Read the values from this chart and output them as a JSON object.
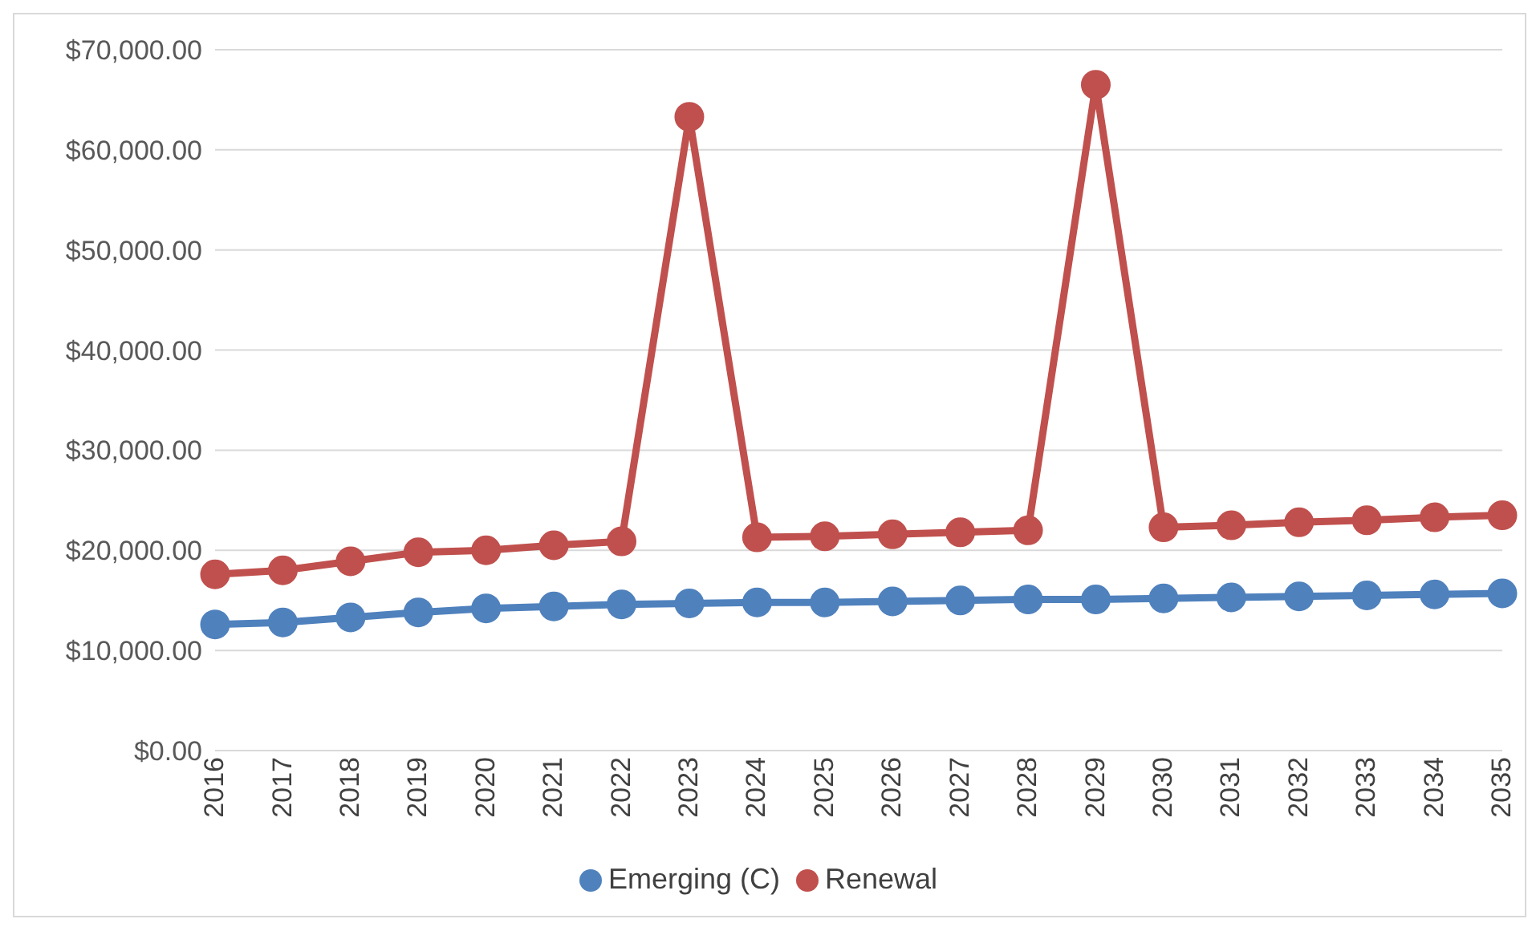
{
  "chart_data": {
    "type": "line",
    "categories": [
      "2016",
      "2017",
      "2018",
      "2019",
      "2020",
      "2021",
      "2022",
      "2023",
      "2024",
      "2025",
      "2026",
      "2027",
      "2028",
      "2029",
      "2030",
      "2031",
      "2032",
      "2033",
      "2034",
      "2035"
    ],
    "series": [
      {
        "name": "Emerging (C)",
        "color": "#4f81bd",
        "values": [
          12600,
          12800,
          13300,
          13800,
          14200,
          14400,
          14600,
          14700,
          14800,
          14800,
          14900,
          15000,
          15100,
          15100,
          15200,
          15300,
          15400,
          15500,
          15600,
          15700
        ]
      },
      {
        "name": "Renewal",
        "color": "#c0504d",
        "values": [
          17600,
          18000,
          18900,
          19800,
          20000,
          20500,
          20900,
          63300,
          21300,
          21400,
          21600,
          21800,
          22000,
          66500,
          22300,
          22500,
          22800,
          23000,
          23300,
          23500
        ]
      }
    ],
    "ylim": [
      0,
      70000
    ],
    "yticks": [
      {
        "value": 0,
        "label": "$0.00"
      },
      {
        "value": 10000,
        "label": "$10,000.00"
      },
      {
        "value": 20000,
        "label": "$20,000.00"
      },
      {
        "value": 30000,
        "label": "$30,000.00"
      },
      {
        "value": 40000,
        "label": "$40,000.00"
      },
      {
        "value": 50000,
        "label": "$50,000.00"
      },
      {
        "value": 60000,
        "label": "$60,000.00"
      },
      {
        "value": 70000,
        "label": "$70,000.00"
      }
    ],
    "grid": "y",
    "legend": "bottom",
    "marker": "circle",
    "line_style": "solid"
  }
}
